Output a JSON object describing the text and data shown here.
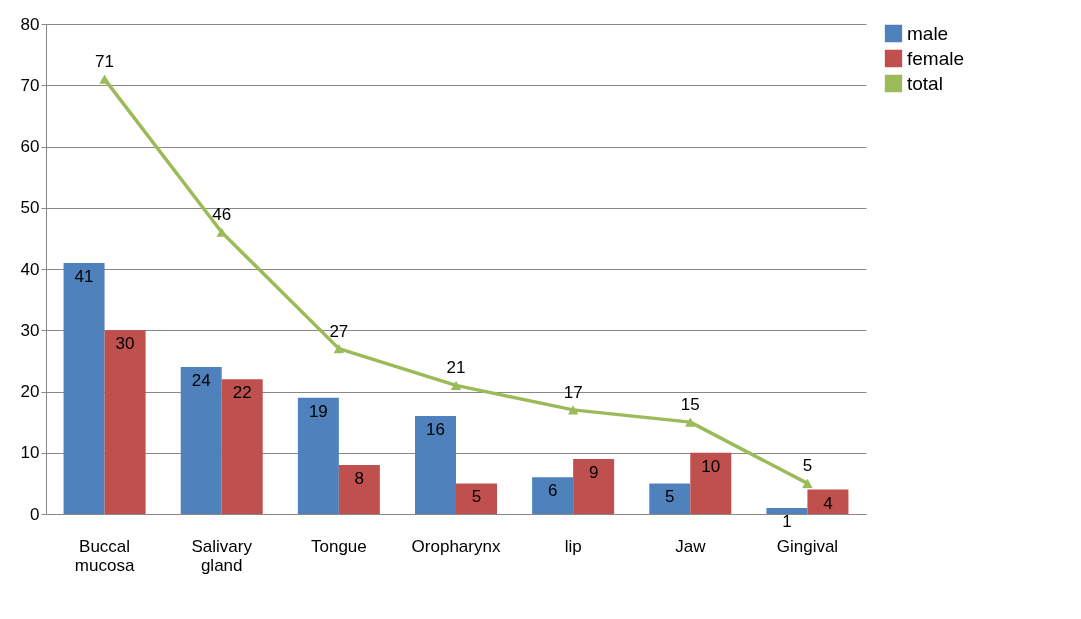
{
  "chart_data": {
    "type": "bar",
    "categories": [
      "Buccal mucosa",
      "Salivary gland",
      "Tongue",
      "Oropharynx",
      "lip",
      "Jaw",
      "Gingival"
    ],
    "series": [
      {
        "name": "male",
        "color": "#4f81bd",
        "values": [
          41,
          24,
          19,
          16,
          6,
          5,
          1
        ]
      },
      {
        "name": "female",
        "color": "#c0504d",
        "values": [
          30,
          22,
          8,
          5,
          9,
          10,
          4
        ]
      },
      {
        "name": "total",
        "type": "line",
        "color": "#9bbb59",
        "marker": "triangle",
        "values": [
          71,
          46,
          27,
          21,
          17,
          15,
          5
        ]
      }
    ],
    "ylim": [
      0,
      80
    ],
    "yticks": [
      0,
      10,
      20,
      30,
      40,
      50,
      60,
      70,
      80
    ],
    "grid": "y",
    "legend": "right",
    "data_labels": true
  }
}
